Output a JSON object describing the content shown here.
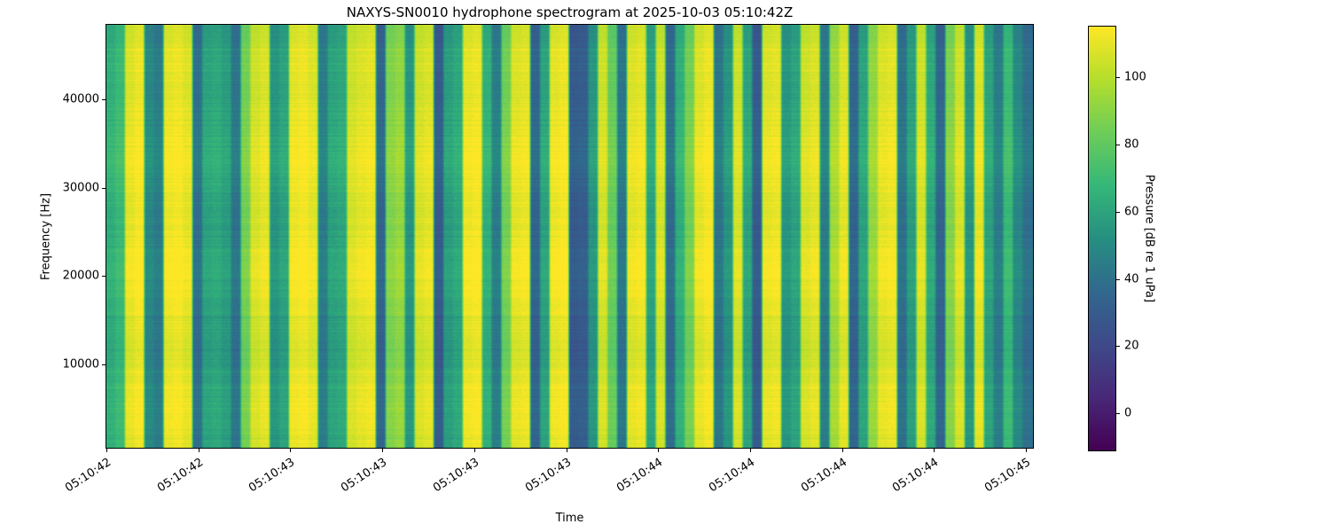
{
  "chart_data": {
    "type": "heatmap",
    "title": "NAXYS-SN0010 hydrophone spectrogram at 2025-10-03 05:10:42Z",
    "xlabel": "Time",
    "ylabel": "Frequency [Hz]",
    "x_tick_labels": [
      "05:10:42",
      "05:10:42",
      "05:10:43",
      "05:10:43",
      "05:10:43",
      "05:10:43",
      "05:10:44",
      "05:10:44",
      "05:10:44",
      "05:10:44",
      "05:10:45"
    ],
    "y_ticks": [
      10000,
      20000,
      30000,
      40000
    ],
    "ylim": [
      500,
      48500
    ],
    "grid": false,
    "legend": "none",
    "colormap": "viridis",
    "colorbar": {
      "label": "Pressure [dB re 1 uPa]",
      "ticks": [
        0,
        20,
        40,
        60,
        80,
        100
      ],
      "vmin": -11,
      "vmax": 115
    },
    "columns_db": [
      65,
      70,
      108,
      112,
      50,
      45,
      110,
      112,
      108,
      40,
      60,
      62,
      58,
      42,
      85,
      105,
      108,
      55,
      60,
      110,
      112,
      108,
      45,
      60,
      62,
      105,
      108,
      110,
      35,
      88,
      92,
      55,
      105,
      108,
      30,
      58,
      62,
      110,
      112,
      65,
      45,
      85,
      108,
      110,
      35,
      60,
      110,
      112,
      30,
      32,
      55,
      105,
      82,
      42,
      108,
      110,
      60,
      105,
      38,
      65,
      85,
      108,
      112,
      42,
      55,
      105,
      60,
      30,
      108,
      110,
      55,
      60,
      105,
      108,
      45,
      95,
      108,
      35,
      60,
      92,
      108,
      110,
      40,
      58,
      105,
      62,
      35,
      88,
      105,
      55,
      108,
      60,
      45,
      70,
      50,
      40
    ]
  }
}
